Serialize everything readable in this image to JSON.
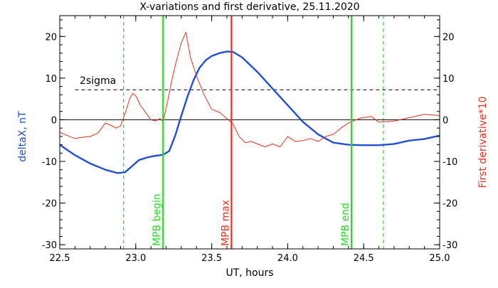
{
  "chart_data": {
    "type": "line",
    "title": "X-variations and first derivative, 25.11.2020",
    "xlabel": "UT, hours",
    "ylabel_left": "deltaX, nT",
    "ylabel_right": "First derivative*10",
    "xlim": [
      22.5,
      25.0
    ],
    "ylim": [
      -31,
      25
    ],
    "x_ticks": [
      "22.5",
      "23.0",
      "23.5",
      "24.0",
      "24.5",
      "25.0"
    ],
    "y_ticks": [
      "-30",
      "-20",
      "-10",
      "0",
      "10",
      "20"
    ],
    "threshold_label": "2sigma",
    "threshold_value": 7.2,
    "zero_line": 0,
    "colors": {
      "deltaX": "#1f4fd6",
      "derivative": "#e8301c",
      "mpb_begin_end": "#22dd22",
      "mpb_max": "#e8301c",
      "sigma_line": "#000000",
      "axes": "#000000"
    },
    "vertical_markers": [
      {
        "label": "MPB begin",
        "x": 23.18,
        "style": "solid",
        "color": "#22dd22"
      },
      {
        "label": "MPB max",
        "x": 23.63,
        "style": "solid",
        "color": "#e8301c"
      },
      {
        "label": "MPB end",
        "x": 24.42,
        "style": "solid",
        "color": "#22dd22"
      }
    ],
    "dashed_markers": [
      {
        "x": 22.92,
        "color": "#22dd22"
      },
      {
        "x": 24.63,
        "color": "#22dd22"
      }
    ],
    "series": [
      {
        "key": "deltaX",
        "x": [
          22.5,
          22.6,
          22.7,
          22.8,
          22.88,
          22.93,
          22.98,
          23.02,
          23.08,
          23.12,
          23.18,
          23.22,
          23.26,
          23.3,
          23.34,
          23.38,
          23.42,
          23.46,
          23.5,
          23.55,
          23.6,
          23.64,
          23.7,
          23.8,
          23.9,
          24.0,
          24.1,
          24.2,
          24.3,
          24.4,
          24.5,
          24.6,
          24.7,
          24.8,
          24.9,
          25.0
        ],
        "y": [
          -6.0,
          -8.5,
          -10.5,
          -12.0,
          -12.8,
          -12.6,
          -11.0,
          -9.7,
          -9.0,
          -8.7,
          -8.4,
          -7.5,
          -3.8,
          1.0,
          5.5,
          9.5,
          12.5,
          14.3,
          15.3,
          16.0,
          16.4,
          16.3,
          15.0,
          11.5,
          7.5,
          3.5,
          -0.5,
          -3.5,
          -5.5,
          -6.0,
          -6.1,
          -6.1,
          -5.8,
          -5.0,
          -4.6,
          -3.8
        ]
      },
      {
        "key": "derivative",
        "x": [
          22.5,
          22.55,
          22.6,
          22.65,
          22.7,
          22.75,
          22.8,
          22.83,
          22.87,
          22.9,
          22.93,
          22.96,
          22.98,
          23.0,
          23.03,
          23.07,
          23.1,
          23.13,
          23.16,
          23.18,
          23.21,
          23.24,
          23.27,
          23.3,
          23.33,
          23.36,
          23.4,
          23.45,
          23.5,
          23.55,
          23.6,
          23.64,
          23.68,
          23.72,
          23.76,
          23.8,
          23.85,
          23.9,
          23.95,
          24.0,
          24.05,
          24.1,
          24.15,
          24.2,
          24.25,
          24.3,
          24.35,
          24.4,
          24.43,
          24.48,
          24.55,
          24.6,
          24.7,
          24.8,
          24.9,
          25.0
        ],
        "y": [
          -3.0,
          -3.8,
          -4.5,
          -4.2,
          -4.0,
          -3.2,
          -0.8,
          -1.2,
          -2.0,
          -1.5,
          1.5,
          5.0,
          6.3,
          5.8,
          3.5,
          1.5,
          0.0,
          -0.3,
          0.3,
          -0.5,
          4.5,
          10.0,
          14.5,
          18.5,
          21.0,
          15.0,
          10.5,
          6.0,
          2.5,
          1.8,
          0.3,
          -1.0,
          -4.0,
          -5.5,
          -5.2,
          -5.8,
          -6.5,
          -5.8,
          -6.5,
          -4.0,
          -5.2,
          -5.0,
          -4.5,
          -5.2,
          -4.0,
          -3.5,
          -2.0,
          -0.8,
          -0.3,
          0.4,
          0.8,
          -0.6,
          -0.3,
          0.5,
          1.3,
          1.0
        ]
      }
    ],
    "grid": false,
    "legend": "none"
  }
}
